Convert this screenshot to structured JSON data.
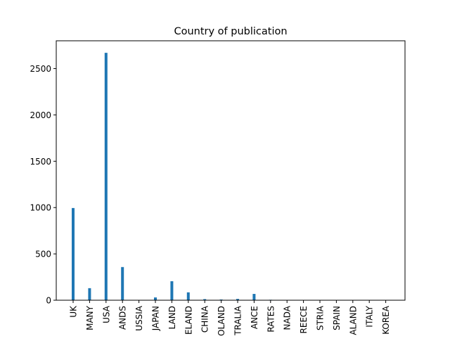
{
  "chart_data": {
    "type": "bar",
    "title": "Country of publication",
    "xlabel": "",
    "ylabel": "",
    "ylim": [
      0,
      2800
    ],
    "yticks": [
      0,
      500,
      1000,
      1500,
      2000,
      2500
    ],
    "ytick_labels": [
      "0",
      "500",
      "1000",
      "1500",
      "2000",
      "2500"
    ],
    "categories": [
      "UK",
      "MANY",
      "USA",
      "ANDS",
      "USSIA",
      "JAPAN",
      "LAND",
      "ELAND",
      "CHINA",
      "OLAND",
      "TRALIA",
      "ANCE",
      "RATES",
      "NADA",
      "REECE",
      "STRIA",
      "SPAIN",
      "ALAND",
      "ITALY",
      "KOREA"
    ],
    "values": [
      995,
      130,
      2670,
      358,
      2,
      30,
      205,
      85,
      12,
      8,
      14,
      68,
      5,
      3,
      2,
      2,
      2,
      2,
      2,
      2
    ],
    "bar_color": "#1f77b4",
    "grid": false,
    "legend": "none"
  }
}
